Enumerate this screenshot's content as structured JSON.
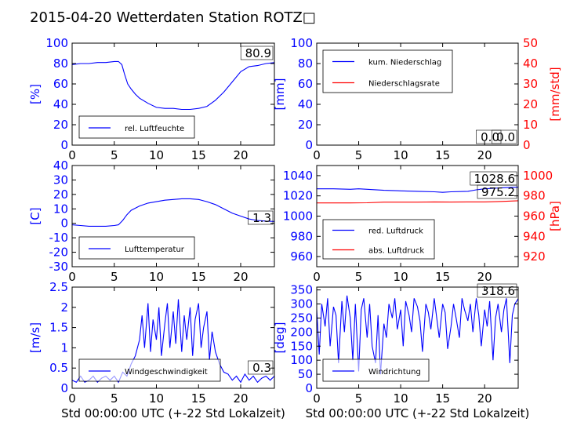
{
  "title": "2015-04-20 Wetterdaten Station ROTZ□",
  "colors": {
    "primary": "#0000ff",
    "secondary": "#ff0000",
    "axis": "#000000",
    "background": "#ffffff"
  },
  "chart_data": [
    {
      "id": "humidity",
      "type": "line",
      "ylabel": "[%]",
      "xlim": [
        0,
        24
      ],
      "ylim": [
        0,
        100
      ],
      "xticks": [
        0,
        5,
        10,
        15,
        20
      ],
      "yticks": [
        0,
        20,
        40,
        60,
        80,
        100
      ],
      "value_label": "80.9",
      "legend": {
        "placement": "lower-left",
        "entries": [
          "rel. Luftfeuchte"
        ]
      },
      "series": [
        {
          "name": "rel. Luftfeuchte",
          "color": "#0000ff",
          "x": [
            0,
            1,
            2,
            3,
            4,
            5,
            5.5,
            5.9,
            6.2,
            6.6,
            7,
            7.5,
            8,
            9,
            10,
            11,
            12,
            13,
            14,
            15,
            16,
            17,
            18,
            19,
            20,
            21,
            22,
            23,
            24
          ],
          "y": [
            79,
            80,
            80,
            81,
            81,
            82,
            82,
            79,
            70,
            60,
            55,
            50,
            46,
            41,
            37,
            36,
            36,
            35,
            35,
            36,
            38,
            44,
            52,
            62,
            72,
            77,
            78,
            80,
            80.9
          ]
        }
      ]
    },
    {
      "id": "precip",
      "type": "line",
      "ylabel": "[mm]",
      "y2label": "[mm/std]",
      "xlim": [
        0,
        24
      ],
      "ylim": [
        0,
        100
      ],
      "y2lim": [
        0,
        50
      ],
      "xticks": [
        0,
        5,
        10,
        15,
        20
      ],
      "yticks": [
        0,
        20,
        40,
        60,
        80,
        100
      ],
      "y2ticks": [
        0,
        10,
        20,
        30,
        40,
        50
      ],
      "value_label": "0.0",
      "value_label2": "0.0",
      "legend": {
        "placement": "upper-left",
        "entries": [
          "kum. Niederschlag",
          "Niederschlagsrate"
        ]
      },
      "series": [
        {
          "name": "kum. Niederschlag",
          "color": "#0000ff",
          "axis": "left",
          "x": [
            0,
            24
          ],
          "y": [
            0,
            0
          ]
        },
        {
          "name": "Niederschlagsrate",
          "color": "#ff0000",
          "axis": "right",
          "x": [
            0,
            24
          ],
          "y": [
            0,
            0
          ]
        }
      ]
    },
    {
      "id": "temperature",
      "type": "line",
      "ylabel": "[C]",
      "xlim": [
        0,
        24
      ],
      "ylim": [
        -30,
        40
      ],
      "xticks": [
        0,
        5,
        10,
        15,
        20
      ],
      "yticks": [
        -30,
        -20,
        -10,
        0,
        10,
        20,
        30,
        40
      ],
      "value_label": "1.3",
      "legend": {
        "placement": "lower-left",
        "entries": [
          "Lufttemperatur"
        ]
      },
      "series": [
        {
          "name": "Lufttemperatur",
          "color": "#0000ff",
          "x": [
            0,
            1,
            2,
            3,
            4,
            5,
            5.5,
            6,
            6.5,
            7,
            8,
            9,
            10,
            11,
            12,
            13,
            14,
            15,
            16,
            17,
            18,
            19,
            20,
            21,
            22,
            23,
            24
          ],
          "y": [
            -1,
            -1.5,
            -2,
            -2,
            -2,
            -1.5,
            -1,
            2,
            6,
            9,
            12,
            14,
            15,
            16,
            16.5,
            17,
            17,
            16.5,
            15,
            13,
            10,
            7,
            5,
            3,
            2,
            1.5,
            1.3
          ]
        }
      ]
    },
    {
      "id": "pressure",
      "type": "line",
      "y2label": "[hPa]",
      "xlim": [
        0,
        24
      ],
      "ylim": [
        950,
        1050
      ],
      "y2lim": [
        910,
        1010
      ],
      "xticks": [
        0,
        5,
        10,
        15,
        20
      ],
      "yticks": [
        960,
        980,
        1000,
        1020,
        1040
      ],
      "y2ticks": [
        920,
        940,
        960,
        980,
        1000
      ],
      "value_label": "1028.6",
      "value_label2": "975.2",
      "legend": {
        "placement": "lower-left",
        "entries": [
          "red. Luftdruck",
          "abs. Luftdruck"
        ]
      },
      "series": [
        {
          "name": "red. Luftdruck",
          "color": "#0000ff",
          "axis": "left",
          "x": [
            0,
            2,
            4,
            5,
            6,
            8,
            10,
            12,
            14,
            15,
            16,
            18,
            19,
            20,
            22,
            24
          ],
          "y": [
            1027,
            1027,
            1026.5,
            1027,
            1026.5,
            1025.5,
            1025,
            1024.5,
            1024,
            1023.5,
            1024,
            1024.5,
            1026,
            1027,
            1028,
            1028.6
          ]
        },
        {
          "name": "abs. Luftdruck",
          "color": "#ff0000",
          "axis": "right",
          "x": [
            0,
            2,
            4,
            6,
            8,
            10,
            12,
            14,
            16,
            18,
            20,
            22,
            24
          ],
          "y": [
            973,
            973,
            973,
            973.2,
            973.8,
            973.8,
            973.8,
            974,
            973.9,
            974,
            974,
            974.5,
            975.2
          ]
        }
      ]
    },
    {
      "id": "windspeed",
      "type": "line",
      "ylabel": "[m/s]",
      "xlabel": "Std 00:00:00 UTC (+-22 Std Lokalzeit)",
      "xlim": [
        0,
        24
      ],
      "ylim": [
        0,
        2.5
      ],
      "xticks": [
        0,
        5,
        10,
        15,
        20
      ],
      "yticks": [
        0.0,
        0.5,
        1.0,
        1.5,
        2.0,
        2.5
      ],
      "value_label": "0.3",
      "legend": {
        "placement": "lower-left",
        "entries": [
          "Windgeschwindigkeit"
        ]
      },
      "series": [
        {
          "name": "Windgeschwindigkeit",
          "color": "#0000ff",
          "x": [
            0,
            0.5,
            1,
            1.5,
            2,
            2.5,
            3,
            3.5,
            4,
            4.5,
            5,
            5.5,
            6,
            6.5,
            7,
            7.5,
            8,
            8.3,
            8.6,
            9,
            9.3,
            9.6,
            10,
            10.3,
            10.6,
            11,
            11.3,
            11.6,
            12,
            12.3,
            12.6,
            13,
            13.3,
            13.6,
            14,
            14.3,
            14.6,
            15,
            15.3,
            15.6,
            16,
            16.3,
            16.6,
            17,
            17.5,
            18,
            18.5,
            19,
            19.5,
            20,
            20.5,
            21,
            21.5,
            22,
            22.5,
            23,
            23.5,
            24
          ],
          "y": [
            0.2,
            0.15,
            0.3,
            0.15,
            0.2,
            0.3,
            0.15,
            0.25,
            0.3,
            0.2,
            0.3,
            0.15,
            0.4,
            0.3,
            0.6,
            0.8,
            1.2,
            1.8,
            1.0,
            2.1,
            0.9,
            1.7,
            1.2,
            2.0,
            0.8,
            1.6,
            2.1,
            1.0,
            1.9,
            1.1,
            2.2,
            0.9,
            1.8,
            1.2,
            2.0,
            0.8,
            1.7,
            2.1,
            1.0,
            1.5,
            1.9,
            0.7,
            1.4,
            0.9,
            0.6,
            0.4,
            0.35,
            0.2,
            0.3,
            0.15,
            0.35,
            0.2,
            0.3,
            0.15,
            0.25,
            0.3,
            0.2,
            0.3
          ]
        }
      ]
    },
    {
      "id": "winddir",
      "type": "line",
      "ylabel": "[deg]",
      "xlabel": "Std 00:00:00 UTC (+-22 Std Lokalzeit)",
      "xlim": [
        0,
        24
      ],
      "ylim": [
        0,
        360
      ],
      "xticks": [
        0,
        5,
        10,
        15,
        20
      ],
      "yticks": [
        0,
        50,
        100,
        150,
        200,
        250,
        300,
        350
      ],
      "value_label": "318.6",
      "legend": {
        "placement": "lower-left",
        "entries": [
          "Windrichtung"
        ]
      },
      "series": [
        {
          "name": "Windrichtung",
          "color": "#0000ff",
          "x": [
            0,
            0.3,
            0.6,
            1,
            1.3,
            1.6,
            2,
            2.3,
            2.6,
            3,
            3.3,
            3.6,
            4,
            4.3,
            4.6,
            5,
            5.3,
            5.6,
            6,
            6.3,
            6.6,
            7,
            7.3,
            7.6,
            8,
            8.3,
            8.6,
            9,
            9.3,
            9.6,
            10,
            10.3,
            10.6,
            11,
            11.3,
            11.6,
            12,
            12.3,
            12.6,
            13,
            13.3,
            13.6,
            14,
            14.3,
            14.6,
            15,
            15.3,
            15.6,
            16,
            16.3,
            16.6,
            17,
            17.3,
            17.6,
            18,
            18.3,
            18.6,
            19,
            19.3,
            19.6,
            20,
            20.3,
            20.6,
            21,
            21.3,
            21.6,
            22,
            22.3,
            22.6,
            23,
            23.3,
            23.6,
            24
          ],
          "y": [
            280,
            120,
            300,
            220,
            320,
            150,
            290,
            260,
            90,
            310,
            200,
            330,
            250,
            100,
            300,
            60,
            280,
            320,
            180,
            300,
            150,
            90,
            260,
            50,
            230,
            180,
            300,
            250,
            320,
            210,
            280,
            150,
            310,
            260,
            200,
            320,
            290,
            240,
            130,
            300,
            270,
            210,
            320,
            250,
            180,
            300,
            270,
            140,
            220,
            300,
            250,
            180,
            320,
            280,
            240,
            300,
            200,
            320,
            260,
            150,
            280,
            220,
            310,
            100,
            250,
            300,
            200,
            280,
            320,
            90,
            260,
            300,
            318.6
          ]
        }
      ]
    }
  ]
}
